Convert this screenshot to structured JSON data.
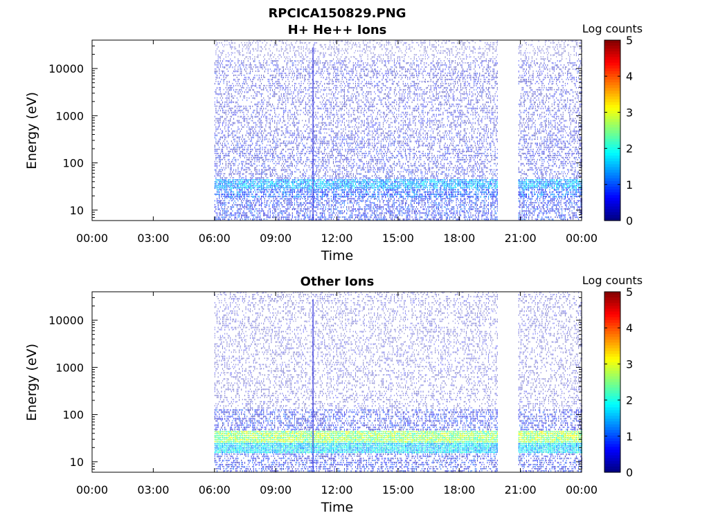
{
  "figure": {
    "title": "RPCICA150829.PNG"
  },
  "chart_data": [
    {
      "type": "heatmap",
      "title": "H+ He++ Ions",
      "xlabel": "Time",
      "ylabel": "Energy (eV)",
      "y_scale": "log",
      "ylim": [
        6,
        40000
      ],
      "xlim_hours": [
        0,
        24
      ],
      "x_tick_labels": [
        "00:00",
        "03:00",
        "06:00",
        "09:00",
        "12:00",
        "15:00",
        "18:00",
        "21:00",
        "00:00"
      ],
      "y_tick_values": [
        10,
        100,
        1000,
        10000
      ],
      "y_tick_labels": [
        "10",
        "100",
        "1000",
        "10000"
      ],
      "colorbar": {
        "label": "Log counts",
        "min": 0,
        "max": 5,
        "ticks": [
          "0",
          "1",
          "2",
          "3",
          "4",
          "5"
        ],
        "colormap": "jet"
      },
      "data_intervals_hours": [
        [
          6.0,
          19.9
        ],
        [
          20.9,
          24.0
        ]
      ],
      "spike_hour": 10.8,
      "bands": [
        {
          "e_min": 6,
          "e_max": 18,
          "log_counts": 0.7
        },
        {
          "e_min": 18,
          "e_max": 28,
          "log_counts": 1.0
        },
        {
          "e_min": 28,
          "e_max": 45,
          "log_counts": 1.4
        },
        {
          "e_min": 45,
          "e_max": 400,
          "log_counts": 0.45
        },
        {
          "e_min": 400,
          "e_max": 15000,
          "log_counts": 0.35
        },
        {
          "e_min": 15000,
          "e_max": 40000,
          "log_counts": 0.1
        }
      ],
      "grid": false
    },
    {
      "type": "heatmap",
      "title": "Other Ions",
      "xlabel": "Time",
      "ylabel": "Energy (eV)",
      "y_scale": "log",
      "ylim": [
        6,
        40000
      ],
      "xlim_hours": [
        0,
        24
      ],
      "x_tick_labels": [
        "00:00",
        "03:00",
        "06:00",
        "09:00",
        "12:00",
        "15:00",
        "18:00",
        "21:00",
        "00:00"
      ],
      "y_tick_values": [
        10,
        100,
        1000,
        10000
      ],
      "y_tick_labels": [
        "10",
        "100",
        "1000",
        "10000"
      ],
      "colorbar": {
        "label": "Log counts",
        "min": 0,
        "max": 5,
        "ticks": [
          "0",
          "1",
          "2",
          "3",
          "4",
          "5"
        ],
        "colormap": "jet"
      },
      "data_intervals_hours": [
        [
          6.0,
          19.9
        ],
        [
          20.9,
          24.0
        ]
      ],
      "spike_hour": 10.8,
      "bands": [
        {
          "e_min": 6,
          "e_max": 15,
          "log_counts": 0.6
        },
        {
          "e_min": 15,
          "e_max": 25,
          "log_counts": 1.7
        },
        {
          "e_min": 25,
          "e_max": 45,
          "log_counts": 2.6
        },
        {
          "e_min": 45,
          "e_max": 130,
          "log_counts": 0.6
        },
        {
          "e_min": 130,
          "e_max": 40000,
          "log_counts": 0.15
        }
      ],
      "grid": false
    }
  ]
}
